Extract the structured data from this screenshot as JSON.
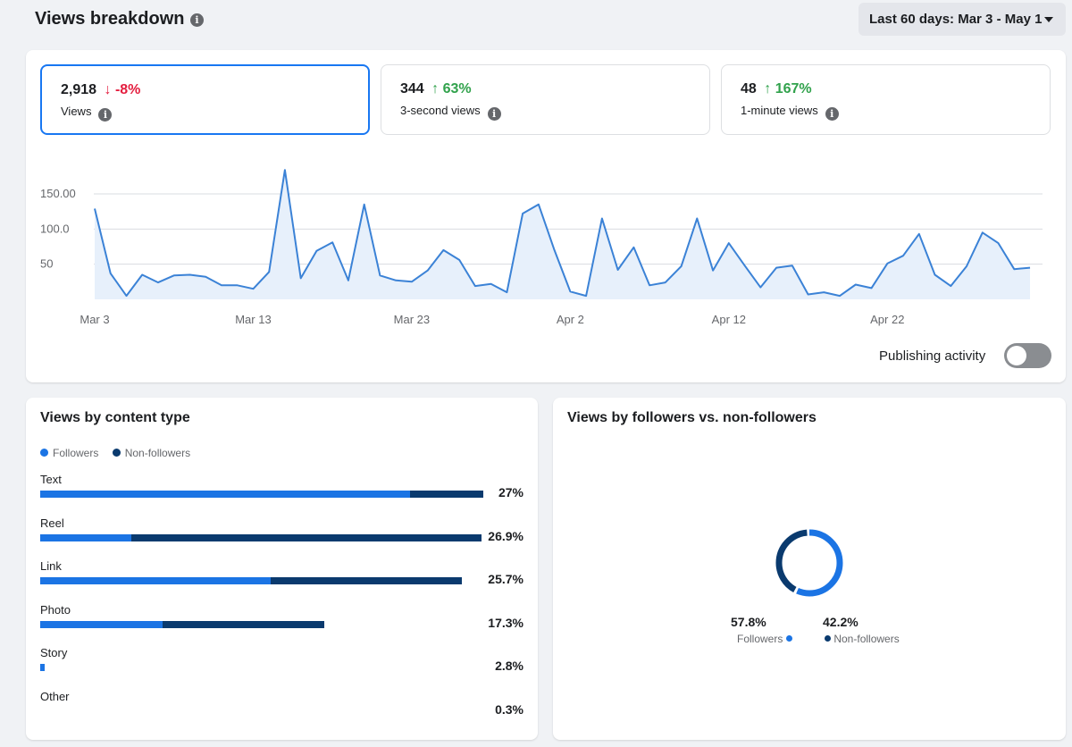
{
  "header": {
    "title": "Views breakdown",
    "date_range": "Last 60 days: Mar 3 - May 1"
  },
  "metrics": [
    {
      "value": "2,918",
      "change": "↓ -8%",
      "direction": "down",
      "label": "Views"
    },
    {
      "value": "344",
      "change": "↑ 63%",
      "direction": "up",
      "label": "3-second views"
    },
    {
      "value": "48",
      "change": "↑ 167%",
      "direction": "up",
      "label": "1-minute views"
    }
  ],
  "publishing": {
    "label": "Publishing activity",
    "enabled": false
  },
  "colors": {
    "line": "#3b82d6",
    "area": "#e7f0fb",
    "followers": "#1b74e4",
    "non_followers": "#0a3a6e"
  },
  "chart_data": [
    {
      "type": "area",
      "title": "",
      "xlabel": "",
      "ylabel": "",
      "grid": true,
      "x_ticks": [
        "Mar 3",
        "Mar 13",
        "Mar 23",
        "Apr 2",
        "Apr 12",
        "Apr 22"
      ],
      "y_ticks": [
        "150.00",
        "100.0",
        "50"
      ],
      "ylim": [
        0,
        150
      ],
      "series": [
        {
          "x": [
            "Mar 3",
            "Mar 4",
            "Mar 5",
            "Mar 6",
            "Mar 7",
            "Mar 8",
            "Mar 9",
            "Mar 10",
            "Mar 11",
            "Mar 12",
            "Mar 13",
            "Mar 14",
            "Mar 15",
            "Mar 16",
            "Mar 17",
            "Mar 18",
            "Mar 19",
            "Mar 20",
            "Mar 21",
            "Mar 22",
            "Mar 23",
            "Mar 24",
            "Mar 25",
            "Mar 26",
            "Mar 27",
            "Mar 28",
            "Mar 29",
            "Mar 30",
            "Mar 31",
            "Apr 1",
            "Apr 2",
            "Apr 3",
            "Apr 4",
            "Apr 5",
            "Apr 6",
            "Apr 7",
            "Apr 8",
            "Apr 9",
            "Apr 10",
            "Apr 11",
            "Apr 12",
            "Apr 13",
            "Apr 14",
            "Apr 15",
            "Apr 16",
            "Apr 17",
            "Apr 18",
            "Apr 19",
            "Apr 20",
            "Apr 21",
            "Apr 22",
            "Apr 23",
            "Apr 24",
            "Apr 25",
            "Apr 26",
            "Apr 27",
            "Apr 28",
            "Apr 29",
            "Apr 30",
            "May 1"
          ],
          "values": [
            129,
            37,
            5,
            35,
            24,
            34,
            35,
            32,
            20,
            20,
            15,
            39,
            184,
            30,
            69,
            81,
            27,
            135,
            34,
            27,
            25,
            41,
            70,
            56,
            19,
            22,
            10,
            122,
            135,
            70,
            11,
            5,
            115,
            42,
            74,
            20,
            24,
            47,
            115,
            41,
            80,
            48,
            17,
            45,
            48,
            7,
            10,
            5,
            21,
            16,
            51,
            62,
            93,
            35,
            19,
            47,
            95,
            80,
            43,
            45
          ]
        }
      ]
    },
    {
      "type": "bar",
      "title": "Views by content type",
      "categories": [
        "Text",
        "Reel",
        "Link",
        "Photo",
        "Story",
        "Other"
      ],
      "series": [
        {
          "name": "Followers",
          "values": [
            83.5,
            20.6,
            54.7,
            43.2,
            10.3,
            1.2
          ]
        },
        {
          "name": "Non-followers",
          "values": [
            16.5,
            79.4,
            45.3,
            56.8,
            0,
            0
          ]
        }
      ],
      "totals_label": [
        "27%",
        "26.9%",
        "25.7%",
        "17.3%",
        "2.8%",
        "0.3%"
      ],
      "totals": [
        27,
        26.9,
        25.7,
        17.3,
        2.8,
        0.3
      ],
      "legend": "top-left"
    },
    {
      "type": "pie",
      "title": "Views by followers vs. non-followers",
      "labels": [
        "Followers",
        "Non-followers"
      ],
      "values": [
        57.8,
        42.2
      ],
      "value_labels": [
        "57.8%",
        "42.2%"
      ]
    }
  ]
}
